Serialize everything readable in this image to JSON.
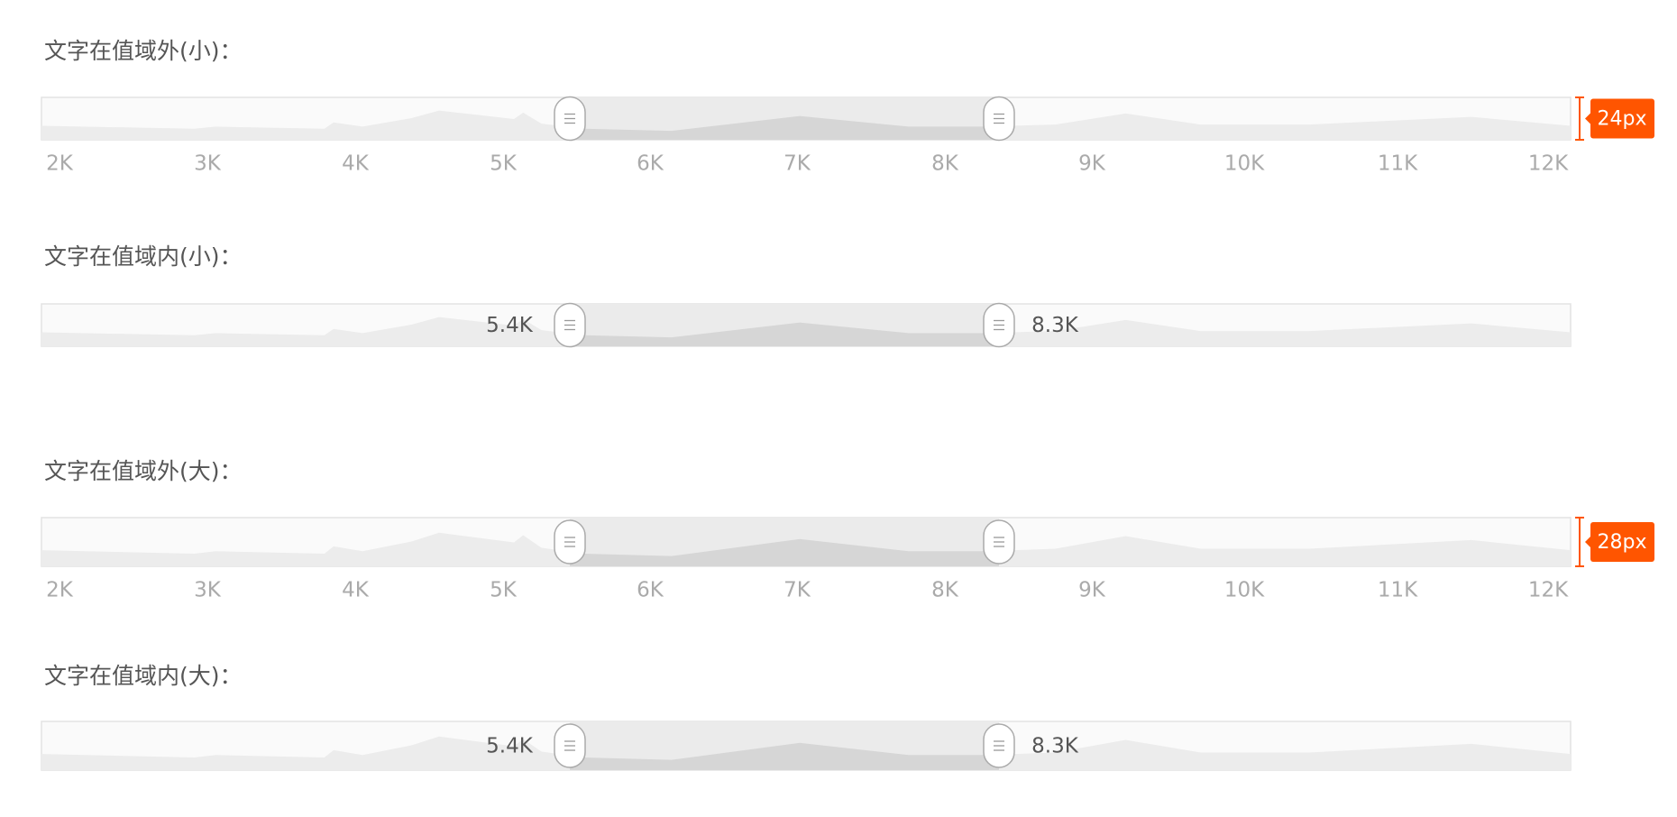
{
  "sections": [
    {
      "title": "文字在值域外(小)：",
      "ticks": [
        "2K",
        "3K",
        "4K",
        "5K",
        "6K",
        "7K",
        "8K",
        "9K",
        "10K",
        "11K",
        "12K"
      ],
      "badge": "24px"
    },
    {
      "title": "文字在值域内(小)：",
      "handle_labels": [
        "5.4K",
        "8.3K"
      ]
    },
    {
      "title": "文字在值域外(大)：",
      "ticks": [
        "2K",
        "3K",
        "4K",
        "5K",
        "6K",
        "7K",
        "8K",
        "9K",
        "10K",
        "11K",
        "12K"
      ],
      "badge": "28px"
    },
    {
      "title": "文字在值域内(大)：",
      "handle_labels": [
        "5.4K",
        "8.3K"
      ]
    }
  ]
}
